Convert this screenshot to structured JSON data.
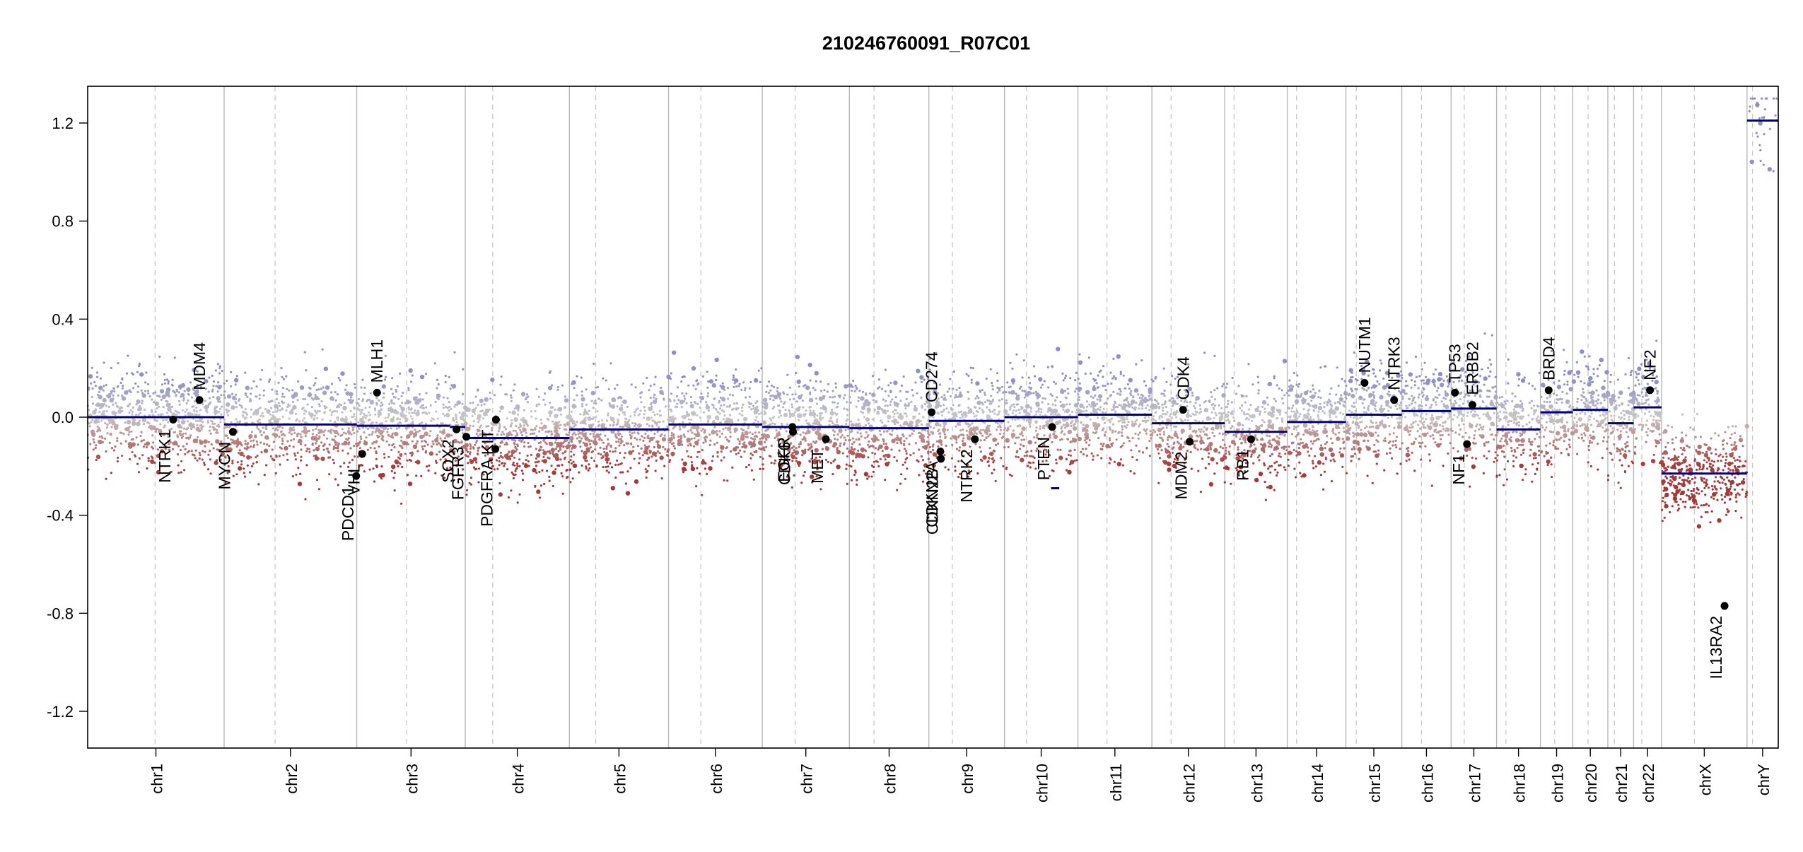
{
  "chart_data": {
    "type": "scatter",
    "title": "210246760091_R07C01",
    "xlabel": "",
    "ylabel": "",
    "ylim": [
      -1.35,
      1.35
    ],
    "yticks": [
      -1.2,
      -0.8,
      -0.4,
      0.0,
      0.4,
      0.8,
      1.2
    ],
    "ytick_labels": [
      "-1.2",
      "-0.8",
      "-0.4",
      "0.0",
      "0.4",
      "0.8",
      "1.2"
    ],
    "grid": false,
    "colors": {
      "gain": "#8f8fc4",
      "neutral": "#c7c7c7",
      "loss": "#a23a3a",
      "segment": "#000080",
      "gene_point": "#000000",
      "chrom_border": "#b8b8b8",
      "centromere": "#c8c8c8"
    },
    "chromosomes": [
      {
        "name": "chr1",
        "size": 249,
        "cen": 123
      },
      {
        "name": "chr2",
        "size": 242,
        "cen": 93
      },
      {
        "name": "chr3",
        "size": 198,
        "cen": 91
      },
      {
        "name": "chr4",
        "size": 190,
        "cen": 50
      },
      {
        "name": "chr5",
        "size": 181,
        "cen": 48
      },
      {
        "name": "chr6",
        "size": 171,
        "cen": 59
      },
      {
        "name": "chr7",
        "size": 159,
        "cen": 60
      },
      {
        "name": "chr8",
        "size": 145,
        "cen": 45
      },
      {
        "name": "chr9",
        "size": 138,
        "cen": 43
      },
      {
        "name": "chr10",
        "size": 134,
        "cen": 40
      },
      {
        "name": "chr11",
        "size": 135,
        "cen": 53
      },
      {
        "name": "chr12",
        "size": 133,
        "cen": 35
      },
      {
        "name": "chr13",
        "size": 114,
        "cen": 17
      },
      {
        "name": "chr14",
        "size": 107,
        "cen": 17
      },
      {
        "name": "chr15",
        "size": 102,
        "cen": 19
      },
      {
        "name": "chr16",
        "size": 90,
        "cen": 36
      },
      {
        "name": "chr17",
        "size": 83,
        "cen": 24
      },
      {
        "name": "chr18",
        "size": 80,
        "cen": 17
      },
      {
        "name": "chr19",
        "size": 59,
        "cen": 26
      },
      {
        "name": "chr20",
        "size": 64,
        "cen": 28
      },
      {
        "name": "chr21",
        "size": 47,
        "cen": 12
      },
      {
        "name": "chr22",
        "size": 51,
        "cen": 15
      },
      {
        "name": "chrX",
        "size": 156,
        "cen": 60
      },
      {
        "name": "chrY",
        "size": 57,
        "cen": 10
      }
    ],
    "segments": [
      {
        "chr": "chr1",
        "start": 0,
        "end": 249,
        "value": 0.0
      },
      {
        "chr": "chr2",
        "start": 0,
        "end": 242,
        "value": -0.03
      },
      {
        "chr": "chr3",
        "start": 0,
        "end": 170,
        "value": -0.035
      },
      {
        "chr": "chr3",
        "start": 170,
        "end": 198,
        "value": -0.04
      },
      {
        "chr": "chr4",
        "start": 0,
        "end": 190,
        "value": -0.085
      },
      {
        "chr": "chr5",
        "start": 0,
        "end": 181,
        "value": -0.05
      },
      {
        "chr": "chr6",
        "start": 0,
        "end": 171,
        "value": -0.03
      },
      {
        "chr": "chr7",
        "start": 0,
        "end": 159,
        "value": -0.04
      },
      {
        "chr": "chr8",
        "start": 0,
        "end": 145,
        "value": -0.045
      },
      {
        "chr": "chr9",
        "start": 0,
        "end": 138,
        "value": -0.015
      },
      {
        "chr": "chr10",
        "start": 0,
        "end": 134,
        "value": 0.0
      },
      {
        "chr": "chr10",
        "start": 85,
        "end": 100,
        "value": -0.29
      },
      {
        "chr": "chr11",
        "start": 0,
        "end": 135,
        "value": 0.01
      },
      {
        "chr": "chr12",
        "start": 0,
        "end": 133,
        "value": -0.025
      },
      {
        "chr": "chr13",
        "start": 0,
        "end": 114,
        "value": -0.06
      },
      {
        "chr": "chr14",
        "start": 0,
        "end": 107,
        "value": -0.02
      },
      {
        "chr": "chr15",
        "start": 0,
        "end": 102,
        "value": 0.01
      },
      {
        "chr": "chr16",
        "start": 0,
        "end": 90,
        "value": 0.025
      },
      {
        "chr": "chr17",
        "start": 0,
        "end": 83,
        "value": 0.035
      },
      {
        "chr": "chr18",
        "start": 0,
        "end": 80,
        "value": -0.05
      },
      {
        "chr": "chr19",
        "start": 0,
        "end": 59,
        "value": 0.02
      },
      {
        "chr": "chr20",
        "start": 0,
        "end": 64,
        "value": 0.03
      },
      {
        "chr": "chr21",
        "start": 0,
        "end": 47,
        "value": -0.025
      },
      {
        "chr": "chr22",
        "start": 0,
        "end": 51,
        "value": 0.04
      },
      {
        "chr": "chrX",
        "start": 0,
        "end": 156,
        "value": -0.23
      },
      {
        "chr": "chrY",
        "start": 0,
        "end": 57,
        "value": 1.21
      }
    ],
    "genes": [
      {
        "name": "NTRK1",
        "chr": "chr1",
        "pos": 156,
        "value": -0.01
      },
      {
        "name": "MDM4",
        "chr": "chr1",
        "pos": 204,
        "value": 0.07
      },
      {
        "name": "MYCN",
        "chr": "chr2",
        "pos": 16,
        "value": -0.06
      },
      {
        "name": "PDCD1",
        "chr": "chr2",
        "pos": 241,
        "value": -0.24
      },
      {
        "name": "VHL",
        "chr": "chr3",
        "pos": 10,
        "value": -0.15
      },
      {
        "name": "MLH1",
        "chr": "chr3",
        "pos": 37,
        "value": 0.1
      },
      {
        "name": "SOX2",
        "chr": "chr3",
        "pos": 182,
        "value": -0.05
      },
      {
        "name": "FGFR3",
        "chr": "chr4",
        "pos": 2,
        "value": -0.08
      },
      {
        "name": "PDGFRA",
        "chr": "chr4",
        "pos": 55,
        "value": -0.13
      },
      {
        "name": "KIT",
        "chr": "chr4",
        "pos": 56,
        "value": -0.01
      },
      {
        "name": "EGFR",
        "chr": "chr7",
        "pos": 55,
        "value": -0.04
      },
      {
        "name": "CDK6",
        "chr": "chr7",
        "pos": 56,
        "value": -0.06
      },
      {
        "name": "MET",
        "chr": "chr7",
        "pos": 116,
        "value": -0.09
      },
      {
        "name": "CD274",
        "chr": "chr9",
        "pos": 5,
        "value": 0.02
      },
      {
        "name": "CDKN2A",
        "chr": "chr9",
        "pos": 21,
        "value": -0.14
      },
      {
        "name": "CDKN2B",
        "chr": "chr9",
        "pos": 22,
        "value": -0.17
      },
      {
        "name": "NTRK2",
        "chr": "chr9",
        "pos": 84,
        "value": -0.09
      },
      {
        "name": "PTEN",
        "chr": "chr10",
        "pos": 87,
        "value": -0.04
      },
      {
        "name": "CDK4",
        "chr": "chr12",
        "pos": 57,
        "value": 0.03
      },
      {
        "name": "MDM2",
        "chr": "chr12",
        "pos": 69,
        "value": -0.1
      },
      {
        "name": "RB1",
        "chr": "chr13",
        "pos": 48,
        "value": -0.09
      },
      {
        "name": "NUTM1",
        "chr": "chr15",
        "pos": 34,
        "value": 0.14
      },
      {
        "name": "NTRK3",
        "chr": "chr15",
        "pos": 88,
        "value": 0.07
      },
      {
        "name": "TP53",
        "chr": "chr17",
        "pos": 7,
        "value": 0.1
      },
      {
        "name": "NF1",
        "chr": "chr17",
        "pos": 29,
        "value": -0.11
      },
      {
        "name": "ERBB2",
        "chr": "chr17",
        "pos": 39,
        "value": 0.05
      },
      {
        "name": "BRD4",
        "chr": "chr19",
        "pos": 15,
        "value": 0.11
      },
      {
        "name": "NF2",
        "chr": "chr22",
        "pos": 30,
        "value": 0.11
      },
      {
        "name": "IL13RA2",
        "chr": "chrX",
        "pos": 115,
        "value": -0.77
      }
    ]
  }
}
